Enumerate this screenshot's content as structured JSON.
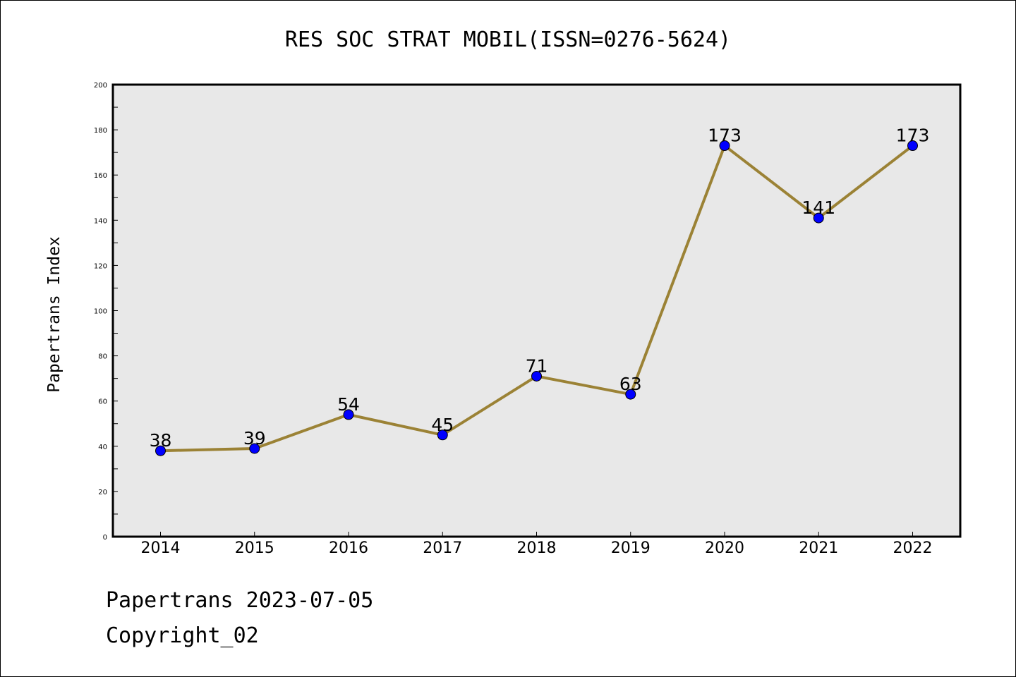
{
  "chart_data": {
    "type": "line",
    "title": "RES SOC STRAT MOBIL(ISSN=0276-5624)",
    "xlabel": "",
    "ylabel": "Papertrans Index",
    "categories": [
      "2014",
      "2015",
      "2016",
      "2017",
      "2018",
      "2019",
      "2020",
      "2021",
      "2022"
    ],
    "values": [
      38,
      39,
      54,
      45,
      71,
      63,
      173,
      141,
      173
    ],
    "ylim": [
      0,
      200
    ],
    "yticks": [
      0,
      20,
      40,
      60,
      80,
      100,
      120,
      140,
      160,
      180,
      200
    ],
    "grid": false,
    "data_labels": true,
    "colors": {
      "line": "#9b8235",
      "marker": "#0000ff",
      "plot_background": "#e8e8e8"
    }
  },
  "footer": {
    "date_line": "Papertrans 2023-07-05",
    "copyright": "Copyright_02"
  }
}
